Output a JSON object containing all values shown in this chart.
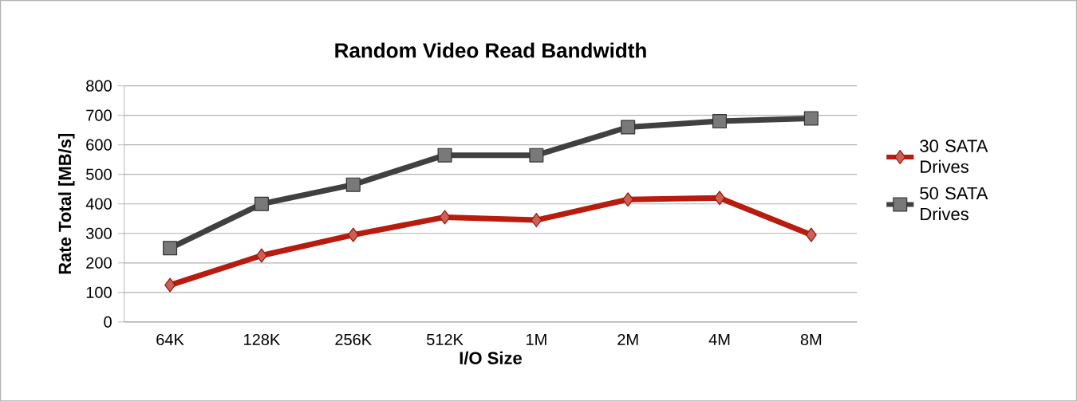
{
  "chart_data": {
    "type": "line",
    "title": "Random Video Read Bandwidth",
    "xlabel": "I/O Size",
    "ylabel": "Rate Total [MB/s]",
    "categories": [
      "64K",
      "128K",
      "256K",
      "512K",
      "1M",
      "2M",
      "4M",
      "8M"
    ],
    "series": [
      {
        "name": "30 SATA Drives",
        "color": "#b81c0e",
        "marker": "diamond",
        "values": [
          125,
          225,
          295,
          355,
          345,
          415,
          420,
          295
        ]
      },
      {
        "name": "50 SATA Drives",
        "color": "#404040",
        "marker": "square",
        "values": [
          250,
          400,
          465,
          565,
          565,
          660,
          680,
          690
        ]
      }
    ],
    "ylim": [
      0,
      800
    ],
    "yticks": [
      0,
      100,
      200,
      300,
      400,
      500,
      600,
      700,
      800
    ],
    "grid": "y",
    "legend": "right"
  }
}
